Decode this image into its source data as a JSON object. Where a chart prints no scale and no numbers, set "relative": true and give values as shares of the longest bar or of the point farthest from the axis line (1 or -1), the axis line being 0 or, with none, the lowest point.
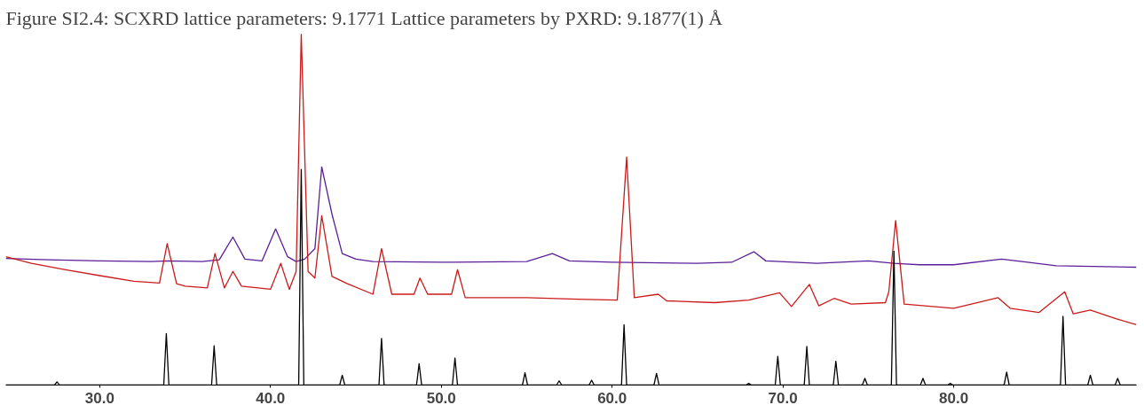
{
  "chart_data": {
    "type": "line",
    "title": "Figure SI2.4: SCXRD lattice parameters: 9.1771 Lattice parameters by PXRD: 9.1877(1) Å",
    "relative": true,
    "grid": false,
    "marker": "none",
    "line_style": "solid",
    "xlim": [
      24.5,
      90.7
    ],
    "xticks": [
      {
        "value": 30,
        "label": "30.0"
      },
      {
        "value": 40,
        "label": "40.0"
      },
      {
        "value": 50,
        "label": "50.0"
      },
      {
        "value": 60,
        "label": "60.0"
      },
      {
        "value": 70,
        "label": "70.0"
      },
      {
        "value": 80,
        "label": "80.0"
      }
    ],
    "series": [
      {
        "color": "#5a1e9a",
        "x": [
          24.5,
          27,
          30,
          33,
          34,
          36,
          37,
          37.8,
          38.5,
          39.5,
          40.3,
          41,
          41.5,
          42,
          42.6,
          43.0,
          43.6,
          44.2,
          45,
          46,
          50,
          55,
          56.5,
          57.5,
          60,
          65,
          67,
          68.3,
          69,
          72,
          75,
          76.5,
          78,
          80,
          82.8,
          84,
          86,
          90.7
        ],
        "values": [
          0.361,
          0.357,
          0.354,
          0.352,
          0.354,
          0.352,
          0.357,
          0.422,
          0.359,
          0.354,
          0.445,
          0.366,
          0.352,
          0.359,
          0.389,
          0.622,
          0.487,
          0.375,
          0.359,
          0.352,
          0.35,
          0.352,
          0.375,
          0.354,
          0.35,
          0.347,
          0.35,
          0.38,
          0.354,
          0.347,
          0.354,
          0.347,
          0.343,
          0.343,
          0.359,
          0.352,
          0.34,
          0.336
        ]
      },
      {
        "color": "#cc1a1a",
        "x": [
          24.5,
          26,
          28,
          30,
          32,
          33.5,
          33.95,
          34.5,
          35,
          36.3,
          36.75,
          37.3,
          37.8,
          38.3,
          40,
          40.6,
          41.1,
          41.5,
          41.8,
          42.2,
          42.6,
          43.0,
          43.6,
          44.5,
          46,
          46.5,
          47.1,
          48.4,
          48.75,
          49.2,
          50.6,
          50.95,
          51.4,
          55,
          58,
          60.3,
          60.85,
          61.3,
          62.7,
          63.2,
          66,
          68,
          69.8,
          70.5,
          71.55,
          72.1,
          73,
          74,
          76,
          76.2,
          76.6,
          77.1,
          80,
          82.6,
          83.3,
          85,
          86.5,
          87,
          88,
          89.5,
          90.7
        ],
        "values": [
          0.366,
          0.347,
          0.329,
          0.312,
          0.296,
          0.291,
          0.403,
          0.289,
          0.282,
          0.277,
          0.375,
          0.277,
          0.324,
          0.282,
          0.273,
          0.347,
          0.273,
          0.324,
          1.0,
          0.324,
          0.305,
          0.483,
          0.31,
          0.289,
          0.259,
          0.389,
          0.259,
          0.259,
          0.305,
          0.259,
          0.259,
          0.329,
          0.249,
          0.249,
          0.245,
          0.242,
          0.65,
          0.249,
          0.259,
          0.24,
          0.235,
          0.242,
          0.263,
          0.224,
          0.287,
          0.226,
          0.247,
          0.231,
          0.235,
          0.266,
          0.469,
          0.231,
          0.219,
          0.249,
          0.219,
          0.207,
          0.266,
          0.203,
          0.214,
          0.189,
          0.172
        ]
      },
      {
        "color": "#000000",
        "x": [
          24.5,
          27.35,
          27.5,
          27.65,
          33.75,
          33.9,
          34.05,
          36.55,
          36.7,
          36.85,
          41.65,
          41.8,
          41.95,
          44.05,
          44.2,
          44.35,
          46.35,
          46.5,
          46.65,
          48.55,
          48.7,
          48.85,
          50.65,
          50.8,
          50.95,
          54.75,
          54.9,
          55.05,
          56.75,
          56.9,
          57.05,
          58.65,
          58.8,
          58.95,
          60.55,
          60.7,
          60.85,
          62.45,
          62.6,
          62.75,
          67.85,
          68.0,
          68.15,
          69.55,
          69.7,
          69.85,
          71.25,
          71.4,
          71.55,
          72.95,
          73.1,
          73.25,
          74.65,
          74.8,
          74.95,
          76.35,
          76.5,
          76.65,
          78.05,
          78.2,
          78.35,
          79.65,
          79.8,
          79.95,
          82.95,
          83.1,
          83.25,
          86.25,
          86.4,
          86.55,
          87.85,
          88.0,
          88.15,
          89.45,
          89.6,
          89.75,
          90.7
        ],
        "values": [
          0,
          0,
          0.009,
          0,
          0,
          0.147,
          0,
          0,
          0.112,
          0,
          0,
          0.615,
          0,
          0,
          0.028,
          0,
          0,
          0.133,
          0,
          0,
          0.061,
          0,
          0,
          0.077,
          0,
          0,
          0.035,
          0,
          0,
          0.012,
          0,
          0,
          0.014,
          0,
          0,
          0.172,
          0,
          0,
          0.033,
          0,
          0,
          0.005,
          0,
          0,
          0.082,
          0,
          0,
          0.11,
          0,
          0,
          0.068,
          0,
          0,
          0.019,
          0,
          0,
          0.382,
          0,
          0,
          0.019,
          0,
          0,
          0.005,
          0,
          0,
          0.037,
          0,
          0,
          0.196,
          0,
          0,
          0.028,
          0,
          0,
          0.019,
          0,
          0
        ]
      }
    ]
  }
}
